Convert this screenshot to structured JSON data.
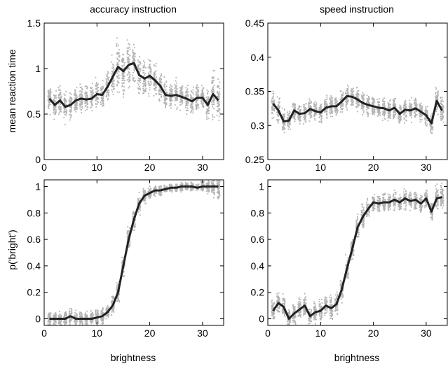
{
  "figure": {
    "titles": [
      "accuracy instruction",
      "speed instruction"
    ],
    "ylabels": [
      "mean reaction time",
      "p('bright')"
    ],
    "xlabel": "brightness"
  },
  "chart_data": [
    {
      "type": "line",
      "title": "accuracy instruction",
      "xlabel": "",
      "ylabel": "mean reaction time",
      "xlim": [
        0,
        34
      ],
      "ylim": [
        0,
        1.5
      ],
      "xticks": [
        0,
        10,
        20,
        30
      ],
      "yticks": [
        0,
        0.5,
        1,
        1.5
      ],
      "yticklabels": [
        "0",
        "0.5",
        "1",
        "1.5"
      ],
      "x": [
        1,
        2,
        3,
        4,
        5,
        6,
        7,
        8,
        9,
        10,
        11,
        12,
        13,
        14,
        15,
        16,
        17,
        18,
        19,
        20,
        21,
        22,
        23,
        24,
        25,
        26,
        27,
        28,
        29,
        30,
        31,
        32,
        33
      ],
      "mean": [
        0.67,
        0.6,
        0.65,
        0.58,
        0.6,
        0.65,
        0.67,
        0.66,
        0.67,
        0.72,
        0.71,
        0.8,
        0.91,
        1.02,
        0.97,
        1.04,
        1.06,
        0.93,
        0.89,
        0.92,
        0.87,
        0.81,
        0.71,
        0.7,
        0.71,
        0.69,
        0.67,
        0.64,
        0.68,
        0.68,
        0.6,
        0.72,
        0.65
      ],
      "scatter_spread": [
        0.15,
        0.15,
        0.15,
        0.15,
        0.14,
        0.15,
        0.15,
        0.15,
        0.15,
        0.15,
        0.15,
        0.16,
        0.18,
        0.25,
        0.27,
        0.28,
        0.26,
        0.24,
        0.2,
        0.18,
        0.17,
        0.16,
        0.15,
        0.15,
        0.14,
        0.14,
        0.15,
        0.15,
        0.15,
        0.16,
        0.17,
        0.25,
        0.28
      ]
    },
    {
      "type": "line",
      "title": "speed instruction",
      "xlabel": "",
      "ylabel": "",
      "xlim": [
        0,
        34
      ],
      "ylim": [
        0.25,
        0.45
      ],
      "xticks": [
        0,
        10,
        20,
        30
      ],
      "yticks": [
        0.25,
        0.3,
        0.35,
        0.4,
        0.45
      ],
      "yticklabels": [
        "0.25",
        "0.3",
        "0.35",
        "0.4",
        "0.45"
      ],
      "x": [
        1,
        2,
        3,
        4,
        5,
        6,
        7,
        8,
        9,
        10,
        11,
        12,
        13,
        14,
        15,
        16,
        17,
        18,
        19,
        20,
        21,
        22,
        23,
        24,
        25,
        26,
        27,
        28,
        29,
        30,
        31,
        32,
        33
      ],
      "mean": [
        0.332,
        0.322,
        0.306,
        0.307,
        0.322,
        0.317,
        0.318,
        0.324,
        0.321,
        0.319,
        0.326,
        0.328,
        0.328,
        0.335,
        0.343,
        0.342,
        0.338,
        0.333,
        0.33,
        0.328,
        0.326,
        0.325,
        0.322,
        0.326,
        0.317,
        0.323,
        0.322,
        0.325,
        0.32,
        0.315,
        0.303,
        0.336,
        0.322
      ],
      "scatter_spread": [
        0.02,
        0.018,
        0.015,
        0.015,
        0.015,
        0.015,
        0.015,
        0.015,
        0.015,
        0.015,
        0.015,
        0.015,
        0.015,
        0.016,
        0.018,
        0.018,
        0.017,
        0.016,
        0.015,
        0.015,
        0.015,
        0.015,
        0.015,
        0.015,
        0.015,
        0.015,
        0.015,
        0.015,
        0.015,
        0.016,
        0.018,
        0.022,
        0.02
      ]
    },
    {
      "type": "line",
      "title": "",
      "xlabel": "brightness",
      "ylabel": "p('bright')",
      "xlim": [
        0,
        34
      ],
      "ylim": [
        -0.05,
        1.05
      ],
      "xticks": [
        0,
        10,
        20,
        30
      ],
      "yticks": [
        0,
        0.2,
        0.4,
        0.6,
        0.8,
        1
      ],
      "yticklabels": [
        "0",
        "0.2",
        "0.4",
        "0.6",
        "0.8",
        "1"
      ],
      "x": [
        1,
        2,
        3,
        4,
        5,
        6,
        7,
        8,
        9,
        10,
        11,
        12,
        13,
        14,
        15,
        16,
        17,
        18,
        19,
        20,
        21,
        22,
        23,
        24,
        25,
        26,
        27,
        28,
        29,
        30,
        31,
        32,
        33
      ],
      "mean": [
        0,
        0,
        0,
        0,
        0.02,
        0,
        0,
        0,
        0,
        0.01,
        0.02,
        0.05,
        0.1,
        0.2,
        0.4,
        0.6,
        0.75,
        0.87,
        0.93,
        0.95,
        0.97,
        0.97,
        0.98,
        0.99,
        0.99,
        1.0,
        1.0,
        1.0,
        0.99,
        1.0,
        1.0,
        1.0,
        1.0
      ],
      "scatter_spread": [
        0.06,
        0.06,
        0.06,
        0.06,
        0.06,
        0.06,
        0.06,
        0.06,
        0.06,
        0.06,
        0.06,
        0.06,
        0.07,
        0.08,
        0.08,
        0.08,
        0.08,
        0.07,
        0.06,
        0.05,
        0.04,
        0.04,
        0.03,
        0.03,
        0.03,
        0.03,
        0.03,
        0.03,
        0.03,
        0.04,
        0.05,
        0.07,
        0.1
      ]
    },
    {
      "type": "line",
      "title": "",
      "xlabel": "brightness",
      "ylabel": "",
      "xlim": [
        0,
        34
      ],
      "ylim": [
        -0.05,
        1.05
      ],
      "xticks": [
        0,
        10,
        20,
        30
      ],
      "yticks": [
        0,
        0.2,
        0.4,
        0.6,
        0.8,
        1
      ],
      "yticklabels": [
        "0",
        "0.2",
        "0.4",
        "0.6",
        "0.8",
        "1"
      ],
      "x": [
        1,
        2,
        3,
        4,
        5,
        6,
        7,
        8,
        9,
        10,
        11,
        12,
        13,
        14,
        15,
        16,
        17,
        18,
        19,
        20,
        21,
        22,
        23,
        24,
        25,
        26,
        27,
        28,
        29,
        30,
        31,
        32,
        33
      ],
      "mean": [
        0.06,
        0.12,
        0.09,
        0.0,
        0.04,
        0.07,
        0.1,
        0.02,
        0.05,
        0.06,
        0.1,
        0.08,
        0.11,
        0.22,
        0.38,
        0.53,
        0.69,
        0.77,
        0.83,
        0.88,
        0.87,
        0.88,
        0.88,
        0.9,
        0.88,
        0.91,
        0.89,
        0.9,
        0.87,
        0.91,
        0.81,
        0.91,
        0.92
      ],
      "scatter_spread": [
        0.08,
        0.08,
        0.08,
        0.08,
        0.08,
        0.08,
        0.08,
        0.08,
        0.08,
        0.08,
        0.08,
        0.08,
        0.08,
        0.08,
        0.08,
        0.08,
        0.08,
        0.08,
        0.07,
        0.07,
        0.07,
        0.07,
        0.07,
        0.07,
        0.07,
        0.07,
        0.07,
        0.07,
        0.07,
        0.07,
        0.08,
        0.08,
        0.1
      ]
    }
  ]
}
